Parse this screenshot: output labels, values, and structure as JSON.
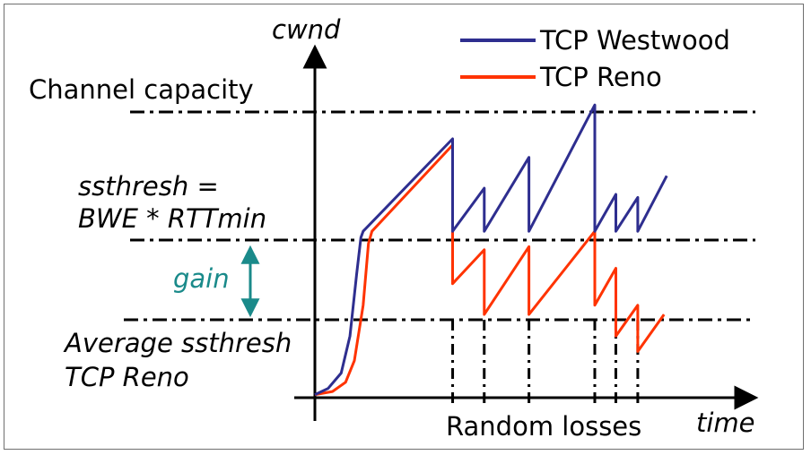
{
  "labels": {
    "y_axis": "cwnd",
    "x_axis": "time",
    "channel_capacity": "Channel capacity",
    "ssthresh_line1": "ssthresh =",
    "ssthresh_line2": "BWE * RTTmin",
    "gain": "gain",
    "avg_line1": "Average ssthresh",
    "avg_line2": "TCP Reno",
    "random_losses": "Random losses"
  },
  "legend": [
    {
      "name": "TCP Westwood",
      "color": "#2e2e8f"
    },
    {
      "name": "TCP Reno",
      "color": "#ff3300"
    }
  ],
  "colors": {
    "westwood": "#2e2e8f",
    "reno": "#ff3300",
    "gain_arrow": "#1a8a8a",
    "axis": "#000000"
  },
  "levels": {
    "channel_capacity": 0.93,
    "westwood_ssthresh": 0.54,
    "average_reno_ssthresh": 0.26
  },
  "chart_data": {
    "type": "line",
    "title": "",
    "xlabel": "time",
    "ylabel": "cwnd",
    "xlim": [
      0,
      10
    ],
    "ylim": [
      0,
      1
    ],
    "grid": false,
    "legend_position": "top-right",
    "loss_events": [
      3.14,
      3.86,
      4.88,
      6.38,
      6.86,
      7.36
    ],
    "series": [
      {
        "name": "TCP Westwood",
        "points": [
          [
            0,
            0.01
          ],
          [
            0.3,
            0.03
          ],
          [
            0.6,
            0.08
          ],
          [
            0.8,
            0.2
          ],
          [
            0.95,
            0.4
          ],
          [
            1.05,
            0.52
          ],
          [
            1.1,
            0.54
          ],
          [
            3.14,
            0.84
          ],
          [
            3.14,
            0.54
          ],
          [
            3.86,
            0.68
          ],
          [
            3.86,
            0.54
          ],
          [
            4.88,
            0.78
          ],
          [
            4.88,
            0.54
          ],
          [
            6.38,
            0.95
          ],
          [
            6.38,
            0.54
          ],
          [
            6.86,
            0.66
          ],
          [
            6.86,
            0.54
          ],
          [
            7.36,
            0.65
          ],
          [
            7.36,
            0.54
          ],
          [
            8.02,
            0.72
          ]
        ]
      },
      {
        "name": "TCP Reno",
        "points": [
          [
            0,
            0.01
          ],
          [
            0.4,
            0.02
          ],
          [
            0.7,
            0.05
          ],
          [
            0.9,
            0.12
          ],
          [
            1.1,
            0.3
          ],
          [
            1.22,
            0.5
          ],
          [
            1.3,
            0.54
          ],
          [
            3.14,
            0.82
          ],
          [
            3.14,
            0.37
          ],
          [
            3.86,
            0.48
          ],
          [
            3.86,
            0.27
          ],
          [
            4.88,
            0.49
          ],
          [
            4.88,
            0.27
          ],
          [
            6.38,
            0.54
          ],
          [
            6.38,
            0.3
          ],
          [
            6.86,
            0.42
          ],
          [
            6.86,
            0.2
          ],
          [
            7.36,
            0.3
          ],
          [
            7.36,
            0.15
          ],
          [
            7.96,
            0.27
          ]
        ]
      }
    ]
  }
}
